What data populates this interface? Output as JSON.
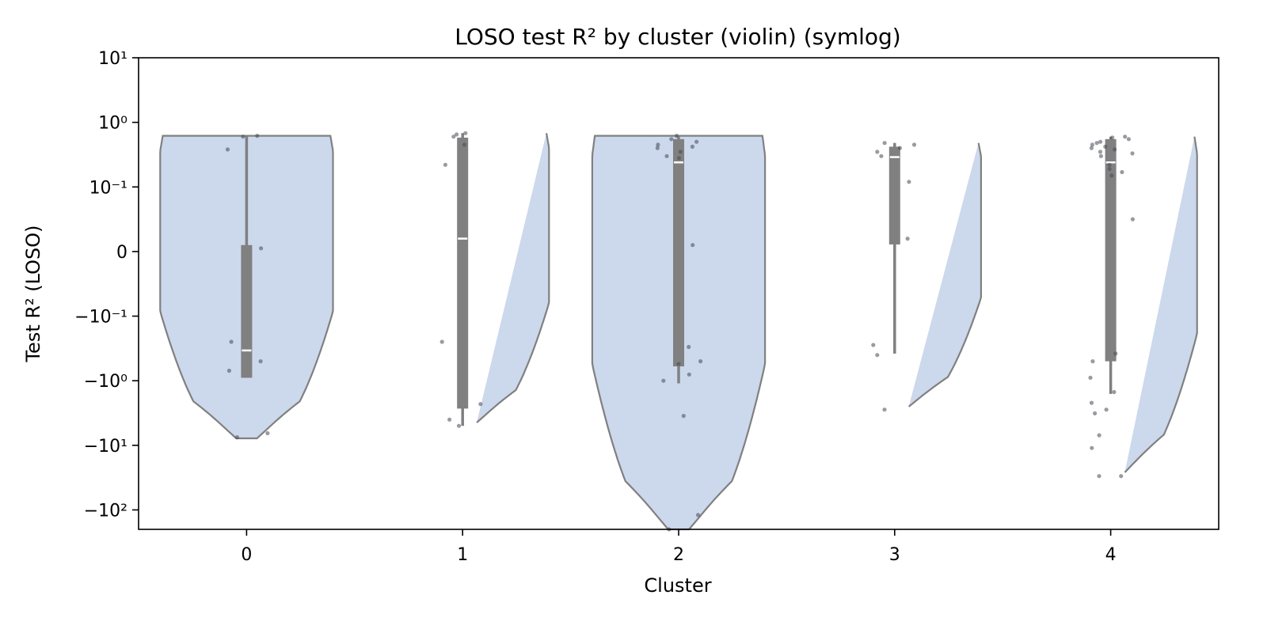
{
  "chart_data": {
    "type": "violin",
    "title": "LOSO test R² by cluster (violin) (symlog)",
    "xlabel": "Cluster",
    "ylabel": "Test R² (LOSO)",
    "y_scale": "symlog",
    "y_scale_linthresh": 0.1,
    "ylim": [
      -200,
      10
    ],
    "y_ticks": [
      10,
      1,
      0.1,
      0,
      -0.1,
      -1,
      -10,
      -100
    ],
    "y_tick_labels": [
      "10¹",
      "10⁰",
      "10⁻¹",
      "0",
      "−10⁻¹",
      "−10⁰",
      "−10¹",
      "−10²"
    ],
    "grid": false,
    "legend": "none",
    "categories": [
      "0",
      "1",
      "2",
      "3",
      "4"
    ],
    "violin_color": "#ccd8ec",
    "violin_edge_color": "#808080",
    "box_color": "#808080",
    "median_color": "#ffffff",
    "point_color": "#444a55",
    "clusters": [
      {
        "label": "0",
        "min": -7.8,
        "max": 0.62,
        "q1": -0.9,
        "median": -0.34,
        "q3": 0.01,
        "whisker_low": -0.9,
        "whisker_high": 0.62,
        "points": [
          0.62,
          0.38,
          0.6,
          0.005,
          -0.25,
          -0.5,
          -0.7,
          -6.5,
          -7.5
        ]
      },
      {
        "label": "1",
        "min": -5.0,
        "max": 0.68,
        "q1": -2.7,
        "median": 0.02,
        "q3": 0.58,
        "whisker_low": -5.0,
        "whisker_high": 0.68,
        "points": [
          0.68,
          0.65,
          0.6,
          0.45,
          0.22,
          -0.25,
          -2.3,
          -4.0,
          -5.0
        ]
      },
      {
        "label": "2",
        "min": -200,
        "max": 0.62,
        "q1": -0.6,
        "median": 0.24,
        "q3": 0.55,
        "whisker_low": -1.1,
        "whisker_high": 0.62,
        "points": [
          0.62,
          0.55,
          0.5,
          0.45,
          0.42,
          0.4,
          0.35,
          0.3,
          0.28,
          0.01,
          -0.3,
          -0.5,
          -0.55,
          -0.8,
          -1.0,
          -3.5,
          -120,
          -200
        ]
      },
      {
        "label": "3",
        "min": -2.8,
        "max": 0.48,
        "q1": 0.011,
        "median": 0.29,
        "q3": 0.42,
        "whisker_low": -0.38,
        "whisker_high": 0.48,
        "points": [
          0.48,
          0.45,
          0.4,
          0.35,
          0.3,
          0.12,
          0.02,
          -0.28,
          -0.4,
          -2.8
        ]
      },
      {
        "label": "4",
        "min": -30,
        "max": 0.6,
        "q1": -0.5,
        "median": 0.24,
        "q3": 0.55,
        "whisker_low": -1.6,
        "whisker_high": 0.6,
        "points": [
          0.6,
          0.58,
          0.55,
          0.5,
          0.48,
          0.45,
          0.42,
          0.4,
          0.38,
          0.35,
          0.33,
          0.3,
          0.22,
          0.19,
          0.17,
          0.15,
          0.05,
          -0.38,
          -0.5,
          -0.9,
          -1.5,
          -2.2,
          -2.8,
          -3.2,
          -7.0,
          -11,
          -30,
          -30
        ]
      }
    ]
  }
}
